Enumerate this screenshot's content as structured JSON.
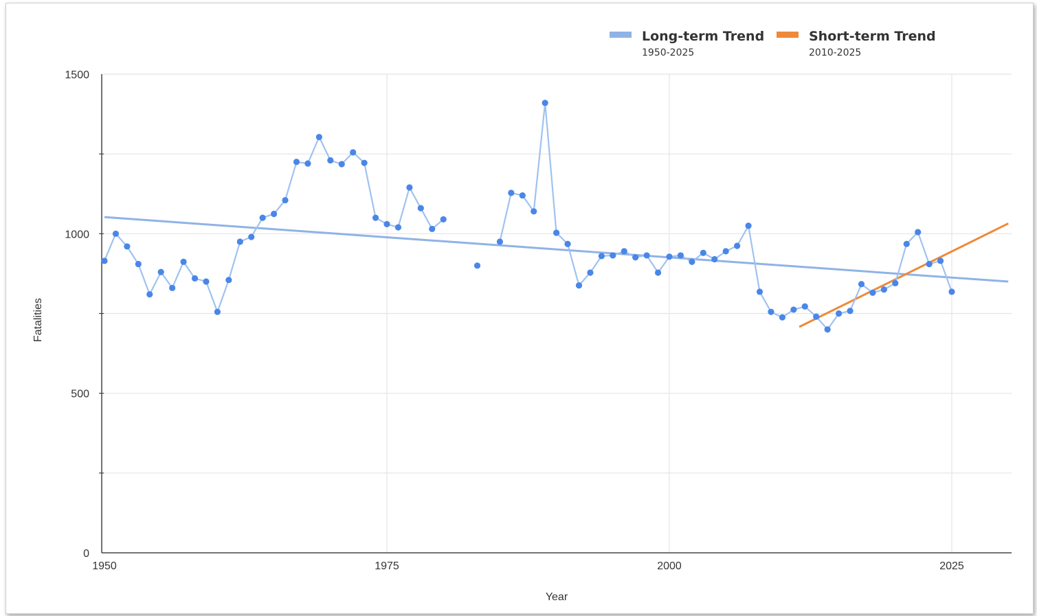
{
  "chart_data": {
    "type": "line",
    "title": "",
    "xlabel": "Year",
    "ylabel": "Fatalities",
    "xlim": [
      1950,
      2030
    ],
    "ylim": [
      0,
      1500
    ],
    "x_ticks": [
      1950,
      1975,
      2000,
      2025
    ],
    "y_ticks": [
      0,
      500,
      1000,
      1500
    ],
    "grid": true,
    "legend_position": "top-right",
    "series": [
      {
        "type": "line",
        "color": "#4a86e8",
        "line_color": "#9fc2f0",
        "points": [
          [
            1950,
            915
          ],
          [
            1951,
            1000
          ],
          [
            1952,
            960
          ],
          [
            1953,
            905
          ],
          [
            1954,
            810
          ],
          [
            1955,
            880
          ],
          [
            1956,
            830
          ],
          [
            1957,
            912
          ],
          [
            1958,
            860
          ],
          [
            1959,
            850
          ],
          [
            1960,
            755
          ],
          [
            1961,
            855
          ],
          [
            1962,
            975
          ],
          [
            1963,
            990
          ],
          [
            1964,
            1050
          ],
          [
            1965,
            1062
          ],
          [
            1966,
            1105
          ],
          [
            1967,
            1225
          ],
          [
            1968,
            1220
          ],
          [
            1969,
            1303
          ],
          [
            1970,
            1230
          ],
          [
            1971,
            1218
          ],
          [
            1972,
            1255
          ],
          [
            1973,
            1222
          ],
          [
            1974,
            1050
          ],
          [
            1975,
            1030
          ],
          [
            1976,
            1020
          ],
          [
            1977,
            1145
          ],
          [
            1978,
            1080
          ],
          [
            1979,
            1015
          ],
          [
            1980,
            1045
          ],
          null,
          [
            1983,
            900
          ],
          null,
          [
            1985,
            975
          ],
          [
            1986,
            1128
          ],
          [
            1987,
            1120
          ],
          [
            1988,
            1070
          ],
          [
            1989,
            1410
          ],
          [
            1990,
            1003
          ],
          [
            1991,
            968
          ],
          [
            1992,
            838
          ],
          [
            1993,
            878
          ],
          [
            1994,
            930
          ],
          [
            1995,
            932
          ],
          [
            1996,
            945
          ],
          [
            1997,
            926
          ],
          [
            1998,
            932
          ],
          [
            1999,
            878
          ],
          [
            2000,
            928
          ],
          [
            2001,
            932
          ],
          [
            2002,
            912
          ],
          [
            2003,
            940
          ],
          [
            2004,
            920
          ],
          [
            2005,
            945
          ],
          [
            2006,
            962
          ],
          [
            2007,
            1025
          ],
          [
            2008,
            818
          ],
          [
            2009,
            755
          ],
          [
            2010,
            738
          ],
          [
            2011,
            762
          ],
          [
            2012,
            772
          ],
          [
            2013,
            740
          ],
          [
            2014,
            700
          ],
          [
            2015,
            750
          ],
          [
            2016,
            758
          ],
          [
            2017,
            842
          ],
          [
            2018,
            815
          ],
          [
            2019,
            825
          ],
          [
            2020,
            845
          ],
          [
            2021,
            968
          ],
          [
            2022,
            1005
          ],
          [
            2023,
            905
          ],
          [
            2024,
            915
          ],
          [
            2025,
            818
          ]
        ]
      },
      {
        "name": "Long-term Trend",
        "subtitle": "1950-2025",
        "type": "trendline",
        "color": "#8fb3e6",
        "points": [
          [
            1950,
            1052
          ],
          [
            2030,
            850
          ]
        ]
      },
      {
        "name": "Short-term Trend",
        "subtitle": "2010-2025",
        "type": "trendline",
        "color": "#ee8a3a",
        "points": [
          [
            2011.5,
            708
          ],
          [
            2030,
            1032
          ]
        ]
      }
    ]
  }
}
